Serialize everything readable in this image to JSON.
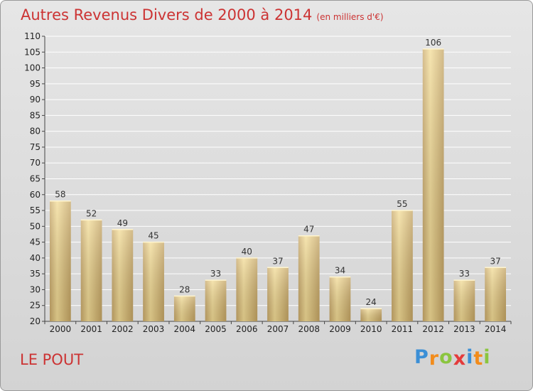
{
  "title": "Autres Revenus Divers de 2000 à 2014",
  "subtitle": "(en milliers d'€)",
  "location": "LE POUT",
  "logo": {
    "letters": [
      "P",
      "r",
      "o",
      "x",
      "i",
      "t",
      "i"
    ],
    "colors": [
      "#3b8fd6",
      "#f28c1c",
      "#8bc53f",
      "#e43b3b",
      "#3b8fd6",
      "#f28c1c",
      "#8bc53f"
    ]
  },
  "chart_data": {
    "type": "bar",
    "categories": [
      "2000",
      "2001",
      "2002",
      "2003",
      "2004",
      "2005",
      "2006",
      "2007",
      "2008",
      "2009",
      "2010",
      "2011",
      "2012",
      "2013",
      "2014"
    ],
    "values": [
      58,
      52,
      49,
      45,
      28,
      33,
      40,
      37,
      47,
      34,
      24,
      55,
      106,
      33,
      37
    ],
    "ylim": [
      20,
      110
    ],
    "yticks": [
      20,
      25,
      30,
      35,
      40,
      45,
      50,
      55,
      60,
      65,
      70,
      75,
      80,
      85,
      90,
      95,
      100,
      105,
      110
    ],
    "grid": true,
    "bar_color": "#e4c77a"
  }
}
